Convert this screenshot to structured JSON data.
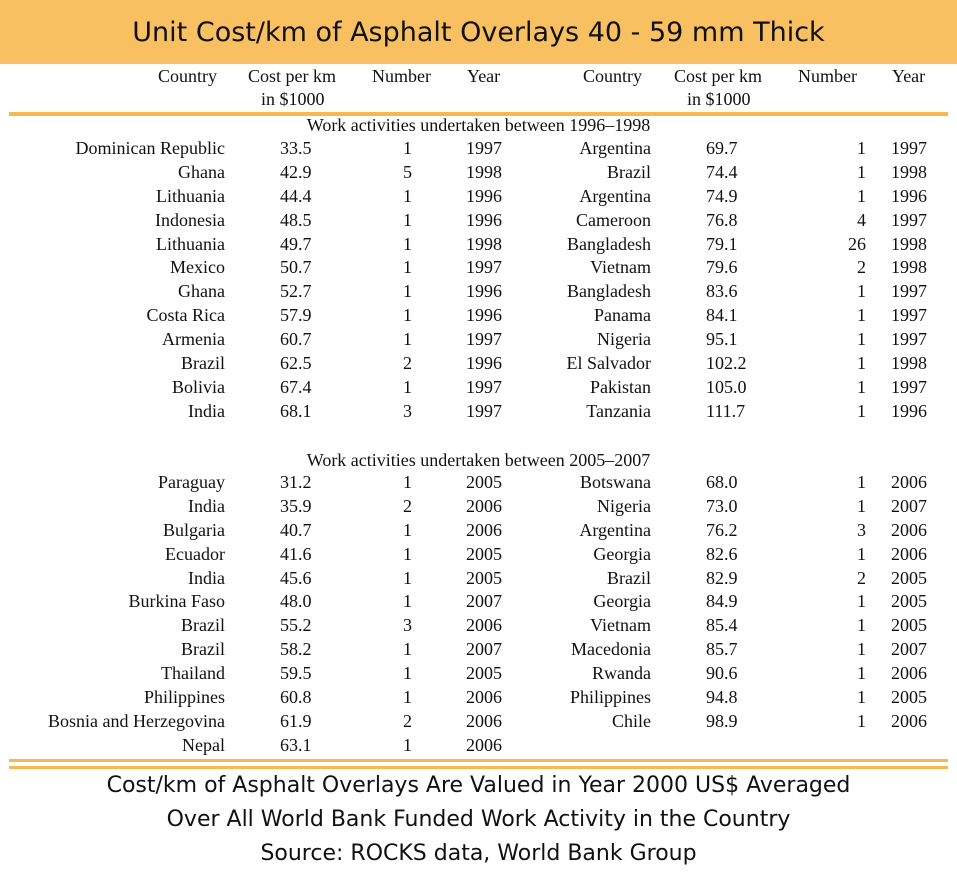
{
  "title": "Unit Cost/km of Asphalt Overlays 40 - 59 mm Thick",
  "headers": {
    "country": "Country",
    "cost": "Cost per km",
    "cost_unit": "in $1000",
    "number": "Number",
    "year": "Year"
  },
  "sections": [
    {
      "title": "Work activities undertaken between 1996–1998",
      "left": [
        {
          "country": "Dominican Republic",
          "cost": "33.5",
          "number": "1",
          "year": "1997"
        },
        {
          "country": "Ghana",
          "cost": "42.9",
          "number": "5",
          "year": "1998"
        },
        {
          "country": "Lithuania",
          "cost": "44.4",
          "number": "1",
          "year": "1996"
        },
        {
          "country": "Indonesia",
          "cost": "48.5",
          "number": "1",
          "year": "1996"
        },
        {
          "country": "Lithuania",
          "cost": "49.7",
          "number": "1",
          "year": "1998"
        },
        {
          "country": "Mexico",
          "cost": "50.7",
          "number": "1",
          "year": "1997"
        },
        {
          "country": "Ghana",
          "cost": "52.7",
          "number": "1",
          "year": "1996"
        },
        {
          "country": "Costa Rica",
          "cost": "57.9",
          "number": "1",
          "year": "1996"
        },
        {
          "country": "Armenia",
          "cost": "60.7",
          "number": "1",
          "year": "1997"
        },
        {
          "country": "Brazil",
          "cost": "62.5",
          "number": "2",
          "year": "1996"
        },
        {
          "country": "Bolivia",
          "cost": "67.4",
          "number": "1",
          "year": "1997"
        },
        {
          "country": "India",
          "cost": "68.1",
          "number": "3",
          "year": "1997"
        }
      ],
      "right": [
        {
          "country": "Argentina",
          "cost": "69.7",
          "number": "1",
          "year": "1997"
        },
        {
          "country": "Brazil",
          "cost": "74.4",
          "number": "1",
          "year": "1998"
        },
        {
          "country": "Argentina",
          "cost": "74.9",
          "number": "1",
          "year": "1996"
        },
        {
          "country": "Cameroon",
          "cost": "76.8",
          "number": "4",
          "year": "1997"
        },
        {
          "country": "Bangladesh",
          "cost": "79.1",
          "number": "26",
          "year": "1998"
        },
        {
          "country": "Vietnam",
          "cost": "79.6",
          "number": "2",
          "year": "1998"
        },
        {
          "country": "Bangladesh",
          "cost": "83.6",
          "number": "1",
          "year": "1997"
        },
        {
          "country": "Panama",
          "cost": "84.1",
          "number": "1",
          "year": "1997"
        },
        {
          "country": "Nigeria",
          "cost": "95.1",
          "number": "1",
          "year": "1997"
        },
        {
          "country": "El Salvador",
          "cost": "102.2",
          "number": "1",
          "year": "1998"
        },
        {
          "country": "Pakistan",
          "cost": "105.0",
          "number": "1",
          "year": "1997"
        },
        {
          "country": "Tanzania",
          "cost": "111.7",
          "number": "1",
          "year": "1996"
        }
      ]
    },
    {
      "title": "Work activities undertaken between 2005–2007",
      "left": [
        {
          "country": "Paraguay",
          "cost": "31.2",
          "number": "1",
          "year": "2005"
        },
        {
          "country": "India",
          "cost": "35.9",
          "number": "2",
          "year": "2006"
        },
        {
          "country": "Bulgaria",
          "cost": "40.7",
          "number": "1",
          "year": "2006"
        },
        {
          "country": "Ecuador",
          "cost": "41.6",
          "number": "1",
          "year": "2005"
        },
        {
          "country": "India",
          "cost": "45.6",
          "number": "1",
          "year": "2005"
        },
        {
          "country": "Burkina Faso",
          "cost": "48.0",
          "number": "1",
          "year": "2007"
        },
        {
          "country": "Brazil",
          "cost": "55.2",
          "number": "3",
          "year": "2006"
        },
        {
          "country": "Brazil",
          "cost": "58.2",
          "number": "1",
          "year": "2007"
        },
        {
          "country": "Thailand",
          "cost": "59.5",
          "number": "1",
          "year": "2005"
        },
        {
          "country": "Philippines",
          "cost": "60.8",
          "number": "1",
          "year": "2006"
        },
        {
          "country": "Bosnia and Herzegovina",
          "cost": "61.9",
          "number": "2",
          "year": "2006"
        },
        {
          "country": "Nepal",
          "cost": "63.1",
          "number": "1",
          "year": "2006"
        }
      ],
      "right": [
        {
          "country": "Botswana",
          "cost": "68.0",
          "number": "1",
          "year": "2006"
        },
        {
          "country": "Nigeria",
          "cost": "73.0",
          "number": "1",
          "year": "2007"
        },
        {
          "country": "Argentina",
          "cost": "76.2",
          "number": "3",
          "year": "2006"
        },
        {
          "country": "Georgia",
          "cost": "82.6",
          "number": "1",
          "year": "2006"
        },
        {
          "country": "Brazil",
          "cost": "82.9",
          "number": "2",
          "year": "2005"
        },
        {
          "country": "Georgia",
          "cost": "84.9",
          "number": "1",
          "year": "2005"
        },
        {
          "country": "Vietnam",
          "cost": "85.4",
          "number": "1",
          "year": "2005"
        },
        {
          "country": "Macedonia",
          "cost": "85.7",
          "number": "1",
          "year": "2007"
        },
        {
          "country": "Rwanda",
          "cost": "90.6",
          "number": "1",
          "year": "2006"
        },
        {
          "country": "Philippines",
          "cost": "94.8",
          "number": "1",
          "year": "2005"
        },
        {
          "country": "Chile",
          "cost": "98.9",
          "number": "1",
          "year": "2006"
        }
      ]
    }
  ],
  "footer": [
    "Cost/km of Asphalt Overlays Are Valued in Year 2000 US$ Averaged",
    "Over All World Bank Funded Work Activity in the Country",
    "Source: ROCKS data, World Bank Group"
  ],
  "colors": {
    "accent": "#f8c061",
    "rule": "#f6b94d"
  }
}
